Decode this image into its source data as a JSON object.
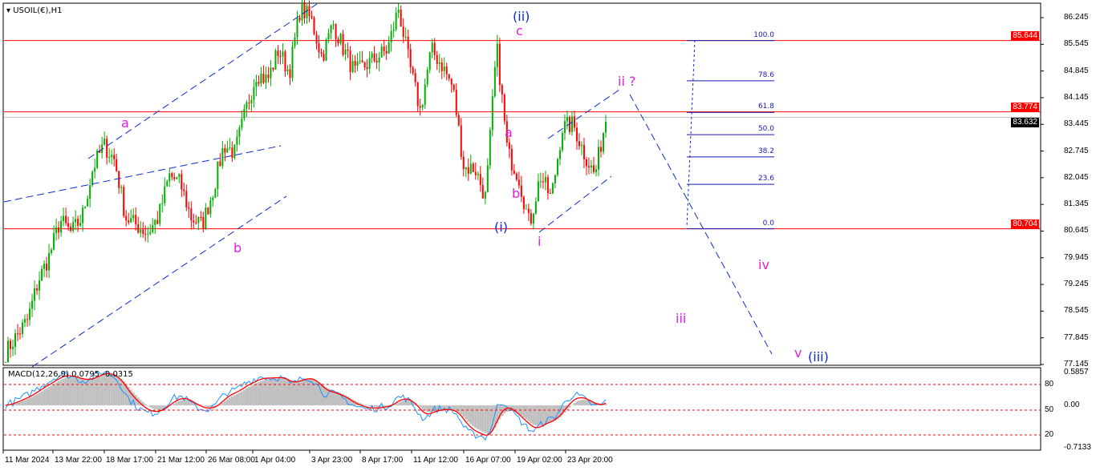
{
  "chart_data": {
    "type": "candlestick",
    "title": "USOIL(€),H1",
    "symbol": "USOIL(€)",
    "timeframe": "H1",
    "ylim": [
      77.145,
      86.245
    ],
    "y_ticks": [
      "86.245",
      "85.545",
      "84.845",
      "84.145",
      "83.445",
      "82.745",
      "82.045",
      "81.345",
      "80.645",
      "79.945",
      "79.245",
      "78.545",
      "77.845",
      "77.145"
    ],
    "x_ticks": [
      "11 Mar 2024",
      "13 Mar 22:00",
      "18 Mar 17:00",
      "21 Mar 12:00",
      "26 Mar 08:00",
      "1 Apr 04:00",
      "3 Apr 23:00",
      "8 Apr 17:00",
      "11 Apr 12:00",
      "16 Apr 07:00",
      "19 Apr 02:00",
      "23 Apr 20:00"
    ],
    "close_path": [
      77.46,
      77.9,
      78.3,
      79.35,
      79.99,
      80.93,
      80.6,
      81.0,
      82.3,
      82.9,
      82.5,
      81.0,
      80.8,
      80.6,
      81.0,
      82.1,
      81.9,
      81.0,
      80.8,
      81.7,
      82.9,
      82.7,
      83.8,
      84.8,
      84.6,
      85.4,
      84.8,
      86.5,
      86.2,
      85.2,
      86.1,
      85.4,
      84.8,
      85.0,
      85.2,
      85.4,
      86.5,
      85.0,
      83.8,
      85.4,
      85.0,
      84.4,
      82.3,
      82.3,
      81.5,
      85.5,
      82.7,
      82.1,
      80.8,
      82.1,
      81.5,
      83.35,
      83.45,
      82.7,
      82.1,
      83.6
    ],
    "horizontal_levels": [
      {
        "price": "85.644",
        "color": "#ff0000"
      },
      {
        "price": "83.774",
        "color": "#ff0000"
      },
      {
        "price": "80.704",
        "color": "#ff0000"
      }
    ],
    "current_price": "83.632",
    "fibonacci_levels": [
      "100.0",
      "78.6",
      "61.8",
      "50.0",
      "38.2",
      "23.6",
      "0.0"
    ],
    "wave_labels": {
      "a1": "a",
      "b1": "b",
      "ii_big": "(ii)",
      "c": "c",
      "a2": "a",
      "b2": "b",
      "i_big": "(i)",
      "i": "i",
      "ii_q": "ii ?",
      "iii": "iii",
      "iv": "iv",
      "v": "v",
      "iii_big": "(iii)"
    },
    "colors": {
      "bull": "#00b000",
      "bear": "#ff0000",
      "wave_minor": "#e21ee2",
      "wave_major": "#0a2bd0",
      "trendline": "#0a2bd0"
    },
    "macd": {
      "label": "MACD(12,26,9) 0.0795 -0.0315",
      "params": [
        12,
        26,
        9
      ],
      "value": 0.0795,
      "signal": -0.0315,
      "ylim": [
        -0.7133,
        0.5857
      ],
      "axis_labels": [
        "0.5857",
        "80",
        "0.00",
        "50",
        "20",
        "-0.7133"
      ],
      "colors": {
        "histogram": "#c0c0c0",
        "main": "#1e90ff",
        "signal": "#ff0000",
        "levels": "#ff0000"
      }
    }
  }
}
